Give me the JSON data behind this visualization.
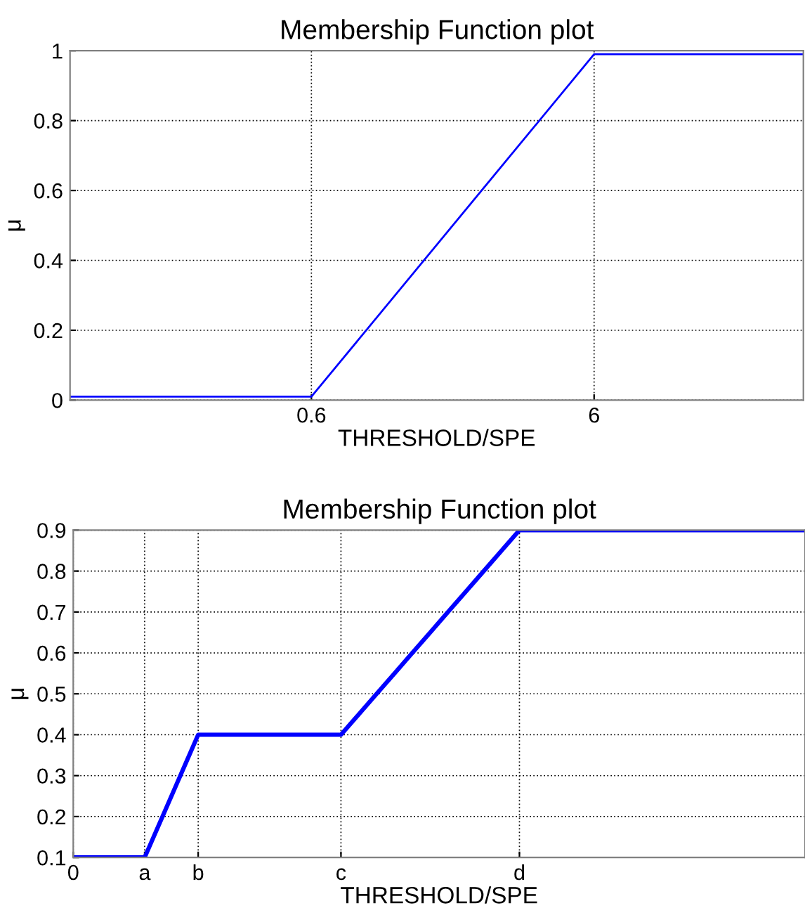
{
  "chart_data": [
    {
      "type": "line",
      "title": "Membership Function plot",
      "xlabel": "THRESHOLD/SPE",
      "ylabel": "μ",
      "log": "x",
      "x": [
        0.084,
        0.6,
        6,
        33
      ],
      "series": [
        {
          "color": "#0000ff",
          "values": [
            0.01,
            0.01,
            0.99,
            0.99
          ]
        }
      ],
      "xlim": [
        0.084,
        33
      ],
      "xticks": [
        0.6,
        6
      ],
      "ylim": [
        0,
        1
      ],
      "yticks": [
        0,
        0.2,
        0.4,
        0.6,
        0.8,
        1
      ],
      "grid": true,
      "line_style": "solid",
      "marker": "none"
    },
    {
      "type": "line",
      "title": "Membership Function plot",
      "xlabel": "THRESHOLD/SPE",
      "ylabel": "μ",
      "categories": [
        "0",
        null,
        null,
        null,
        "a",
        null,
        null,
        "b",
        null,
        null,
        null,
        null,
        null,
        null,
        null,
        "c",
        null,
        null,
        null,
        null,
        null,
        null,
        null,
        null,
        null,
        "d",
        null,
        null,
        null,
        null,
        null,
        null,
        null,
        null,
        null,
        null,
        null,
        null,
        null,
        null,
        null,
        null
      ],
      "series": [
        {
          "color": "#0000ff",
          "values": [
            0.1,
            0.1,
            0.1,
            0.1,
            0.1,
            0.2,
            0.3,
            0.4,
            0.4,
            0.4,
            0.4,
            0.4,
            0.4,
            0.4,
            0.4,
            0.4,
            0.45,
            0.5,
            0.55,
            0.6,
            0.65,
            0.7,
            0.75,
            0.8,
            0.85,
            0.9,
            0.9,
            0.9,
            0.9,
            0.9,
            0.9,
            0.9,
            0.9,
            0.9,
            0.9,
            0.9,
            0.9,
            0.9,
            0.9,
            0.9,
            0.9,
            0.9
          ]
        }
      ],
      "ylim": [
        0.1,
        0.9
      ],
      "yticks": [
        0.1,
        0.2,
        0.3,
        0.4,
        0.5,
        0.6,
        0.7,
        0.8,
        0.9
      ],
      "grid": true,
      "line_style": "solid",
      "marker": "none"
    }
  ]
}
